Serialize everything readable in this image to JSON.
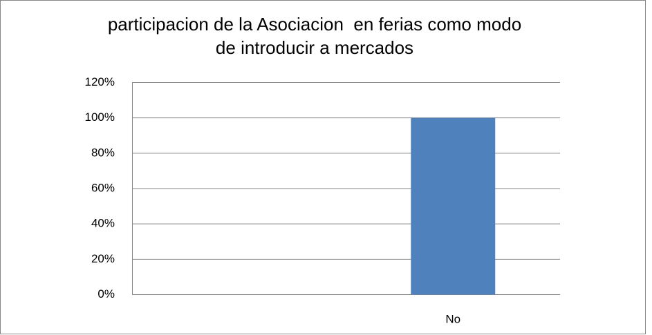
{
  "chart_data": {
    "type": "bar",
    "title": "participacion de la Asociacion  en ferias como modo\nde introducir a mercados",
    "categories": [
      null,
      "No"
    ],
    "values": [
      0,
      100
    ],
    "color": "#4f81bd",
    "ylim": [
      0,
      120
    ],
    "yticks": [
      {
        "value": 0,
        "label": "0%"
      },
      {
        "value": 20,
        "label": "20%"
      },
      {
        "value": 40,
        "label": "40%"
      },
      {
        "value": 60,
        "label": "60%"
      },
      {
        "value": 80,
        "label": "80%"
      },
      {
        "value": 100,
        "label": "100%"
      },
      {
        "value": 120,
        "label": "120%"
      }
    ],
    "grid": true
  }
}
